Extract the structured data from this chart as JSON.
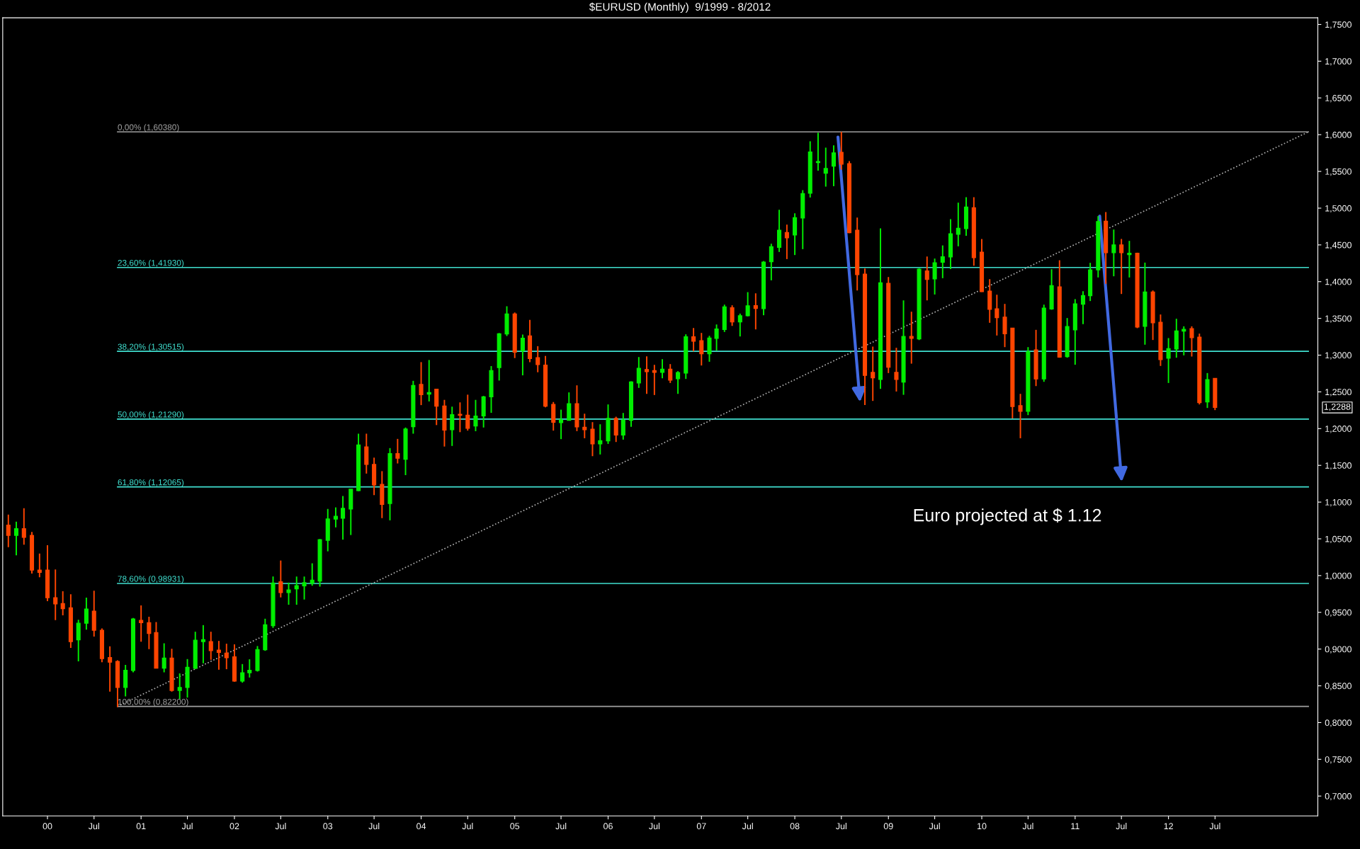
{
  "chart_data": {
    "type": "candlestick",
    "title": "$EURUSD (Monthly)  9/1999 - 8/2012",
    "series": [
      {
        "type": "candlestick",
        "color": "#00ee00",
        "x": [
          "1999-09",
          "2000-05",
          "2000-06",
          "2000-11",
          "2000-12",
          "2001-04",
          "2001-06",
          "2001-07",
          "2001-08",
          "2001-09",
          "2002-02",
          "2002-03",
          "2002-04",
          "2002-05",
          "2002-06",
          "2002-08",
          "2002-09",
          "2002-10",
          "2002-11",
          "2002-12",
          "2003-01",
          "2003-02",
          "2003-03",
          "2003-04",
          "2003-05",
          "2003-09",
          "2003-11",
          "2003-12",
          "2004-02",
          "2004-05",
          "2004-08",
          "2004-09",
          "2004-10",
          "2004-11",
          "2004-12",
          "2005-02",
          "2005-07",
          "2005-08",
          "2005-12",
          "2006-01",
          "2006-03",
          "2006-04",
          "2006-05",
          "2006-08",
          "2006-10",
          "2006-11",
          "2007-02",
          "2007-03",
          "2007-04",
          "2007-06",
          "2007-07",
          "2007-09",
          "2007-10",
          "2007-11",
          "2008-01",
          "2008-02",
          "2008-03",
          "2008-04",
          "2008-05",
          "2008-06",
          "2008-12",
          "2009-03",
          "2009-05",
          "2009-07",
          "2009-08",
          "2009-09",
          "2009-10",
          "2009-11",
          "2010-07",
          "2010-09",
          "2010-10",
          "2010-12",
          "2011-01",
          "2011-02",
          "2011-03",
          "2011-04",
          "2011-06",
          "2011-08",
          "2011-10",
          "2012-01",
          "2012-02",
          "2012-03",
          "2012-06"
        ],
        "ohlc": [
          [
            1.0547,
            1.0733,
            1.0277,
            1.0637
          ],
          [
            0.9127,
            0.94,
            0.8832,
            0.9352
          ],
          [
            0.9352,
            0.9699,
            0.9265,
            0.9545
          ],
          [
            0.8478,
            0.8784,
            0.8357,
            0.871
          ],
          [
            0.871,
            0.9423,
            0.8684,
            0.941
          ],
          [
            0.8742,
            0.9079,
            0.8684,
            0.8877
          ],
          [
            0.8437,
            0.8668,
            0.8318,
            0.8478
          ],
          [
            0.8478,
            0.8864,
            0.834,
            0.8751
          ],
          [
            0.8742,
            0.9236,
            0.8726,
            0.9121
          ],
          [
            0.9101,
            0.9326,
            0.8806,
            0.9127
          ],
          [
            0.8565,
            0.8796,
            0.8543,
            0.8678
          ],
          [
            0.8678,
            0.8861,
            0.8613,
            0.871
          ],
          [
            0.871,
            0.9041,
            0.8694,
            0.8992
          ],
          [
            0.8992,
            0.9413,
            0.8976,
            0.933
          ],
          [
            0.932,
            0.9988,
            0.9288,
            0.9898
          ],
          [
            0.977,
            0.9904,
            0.9603,
            0.9804
          ],
          [
            0.982,
            0.9987,
            0.9603,
            0.9862
          ],
          [
            0.9862,
            0.9987,
            0.9674,
            0.9904
          ],
          [
            0.9896,
            1.0167,
            0.9862,
            0.9937
          ],
          [
            0.9925,
            1.0497,
            0.985,
            1.0489
          ],
          [
            1.0481,
            1.0907,
            1.033,
            1.0769
          ],
          [
            1.0769,
            1.0928,
            1.0656,
            1.0807
          ],
          [
            1.0782,
            1.1083,
            1.0489,
            1.0915
          ],
          [
            1.0907,
            1.1175,
            1.0552,
            1.1175
          ],
          [
            1.1158,
            1.1931,
            1.115,
            1.1776
          ],
          [
            1.0982,
            1.1735,
            1.0752,
            1.1659
          ],
          [
            1.1584,
            1.2015,
            1.1367,
            1.1994
          ],
          [
            1.2027,
            1.265,
            1.1931,
            1.2587
          ],
          [
            1.247,
            1.2934,
            1.237,
            1.2491
          ],
          [
            1.1985,
            1.2299,
            1.1764,
            1.219
          ],
          [
            1.2036,
            1.2391,
            1.1965,
            1.2169
          ],
          [
            1.2174,
            1.2445,
            1.2015,
            1.2433
          ],
          [
            1.2433,
            1.2851,
            1.2215,
            1.2788
          ],
          [
            1.283,
            1.33,
            1.2654,
            1.329
          ],
          [
            1.329,
            1.3665,
            1.326,
            1.356
          ],
          [
            1.306,
            1.328,
            1.2725,
            1.323
          ],
          [
            1.2081,
            1.2258,
            1.1857,
            1.212
          ],
          [
            1.2114,
            1.2493,
            1.2114,
            1.2338
          ],
          [
            1.1792,
            1.2059,
            1.1648,
            1.1834
          ],
          [
            1.1834,
            1.2329,
            1.1792,
            1.2139
          ],
          [
            1.1914,
            1.2213,
            1.185,
            1.2114
          ],
          [
            1.2114,
            1.2643,
            1.2024,
            1.2634
          ],
          [
            1.2621,
            1.2974,
            1.2554,
            1.282
          ],
          [
            1.2766,
            1.2945,
            1.2685,
            1.2807
          ],
          [
            1.2679,
            1.2782,
            1.2473,
            1.2762
          ],
          [
            1.2756,
            1.3283,
            1.2676,
            1.325
          ],
          [
            1.3019,
            1.3263,
            1.291,
            1.3231
          ],
          [
            1.3228,
            1.3417,
            1.3061,
            1.3356
          ],
          [
            1.335,
            1.3687,
            1.3315,
            1.3655
          ],
          [
            1.3453,
            1.3565,
            1.3254,
            1.3536
          ],
          [
            1.3536,
            1.3857,
            1.3527,
            1.3671
          ],
          [
            1.3633,
            1.428,
            1.3543,
            1.4265
          ],
          [
            1.4272,
            1.4516,
            1.4018,
            1.4474
          ],
          [
            1.4468,
            1.4978,
            1.4404,
            1.4699
          ],
          [
            1.4635,
            1.493,
            1.4362,
            1.4869
          ],
          [
            1.4866,
            1.5245,
            1.4442,
            1.5197
          ],
          [
            1.5203,
            1.591,
            1.5145,
            1.5765
          ],
          [
            1.5621,
            1.6025,
            1.5511,
            1.5634
          ],
          [
            1.5476,
            1.5823,
            1.5293,
            1.554
          ],
          [
            1.5572,
            1.5855,
            1.5299,
            1.5752
          ],
          [
            1.2669,
            1.4725,
            1.2541,
            1.3983
          ],
          [
            1.2634,
            1.3745,
            1.246,
            1.3254
          ],
          [
            1.3222,
            1.4182,
            1.3205,
            1.4169
          ],
          [
            1.4037,
            1.4314,
            1.3825,
            1.4256
          ],
          [
            1.4265,
            1.4493,
            1.4047,
            1.4339
          ],
          [
            1.4336,
            1.485,
            1.4172,
            1.4651
          ],
          [
            1.4644,
            1.5075,
            1.4481,
            1.4725
          ],
          [
            1.4721,
            1.5149,
            1.4625,
            1.5014
          ],
          [
            1.2236,
            1.3109,
            1.2184,
            1.3045
          ],
          [
            1.2676,
            1.3687,
            1.2637,
            1.3639
          ],
          [
            1.3629,
            1.4169,
            1.3617,
            1.3944
          ],
          [
            1.2981,
            1.3505,
            1.2965,
            1.3389
          ],
          [
            1.3344,
            1.3762,
            1.2869,
            1.3697
          ],
          [
            1.3694,
            1.3871,
            1.3421,
            1.381
          ],
          [
            1.381,
            1.4256,
            1.3736,
            1.416
          ],
          [
            1.416,
            1.4892,
            1.4057,
            1.4818
          ],
          [
            1.4394,
            1.4709,
            1.4073,
            1.45
          ],
          [
            1.4369,
            1.4555,
            1.4057,
            1.4385
          ],
          [
            1.3392,
            1.4259,
            1.3142,
            1.3858
          ],
          [
            1.2959,
            1.3232,
            1.2621,
            1.3087
          ],
          [
            1.3084,
            1.3495,
            1.2965,
            1.3328
          ],
          [
            1.3328,
            1.3392,
            1.2997,
            1.335
          ],
          [
            1.2365,
            1.2756,
            1.2281,
            1.2666
          ]
        ]
      },
      {
        "type": "candlestick",
        "color": "#ff4500",
        "x": [
          "1999-08",
          "1999-10",
          "1999-11",
          "1999-12",
          "2000-01",
          "2000-02",
          "2000-03",
          "2000-04",
          "2000-07",
          "2000-08",
          "2000-09",
          "2000-10",
          "2001-01",
          "2001-02",
          "2001-03",
          "2001-05",
          "2001-10",
          "2001-11",
          "2001-12",
          "2002-01",
          "2002-07",
          "2003-06",
          "2003-07",
          "2003-08",
          "2003-10",
          "2004-01",
          "2004-03",
          "2004-04",
          "2004-06",
          "2004-07",
          "2005-01",
          "2005-03",
          "2005-04",
          "2005-05",
          "2005-06",
          "2005-09",
          "2005-10",
          "2005-11",
          "2006-02",
          "2006-06",
          "2006-07",
          "2006-09",
          "2006-12",
          "2007-01",
          "2007-05",
          "2007-08",
          "2007-12",
          "2008-07",
          "2008-08",
          "2008-09",
          "2008-10",
          "2008-11",
          "2009-01",
          "2009-02",
          "2009-04",
          "2009-06",
          "2009-12",
          "2010-01",
          "2010-02",
          "2010-03",
          "2010-04",
          "2010-05",
          "2010-06",
          "2010-08",
          "2010-11",
          "2011-05",
          "2011-07",
          "2011-09",
          "2011-11",
          "2011-12",
          "2012-04",
          "2012-05",
          "2012-07"
        ],
        "ohlc": [
          [
            1.0685,
            1.0829,
            1.0386,
            1.0547
          ],
          [
            1.0637,
            1.0916,
            1.0421,
            1.0521
          ],
          [
            1.0547,
            1.0595,
            1.0027,
            1.0075
          ],
          [
            1.0075,
            1.0299,
            0.9978,
            1.0043
          ],
          [
            1.0075,
            1.0412,
            0.9651,
            0.9699
          ],
          [
            0.9699,
            1.0084,
            0.9394,
            0.9615
          ],
          [
            0.9619,
            0.9786,
            0.9458,
            0.9551
          ],
          [
            0.9561,
            0.9747,
            0.9015,
            0.9101
          ],
          [
            0.9516,
            0.9795,
            0.9169,
            0.9256
          ],
          [
            0.9256,
            0.9281,
            0.8822,
            0.887
          ],
          [
            0.8883,
            0.9037,
            0.8421,
            0.8822
          ],
          [
            0.8832,
            0.8848,
            0.8212,
            0.8478
          ],
          [
            0.9391,
            0.9593,
            0.9101,
            0.9359
          ],
          [
            0.9359,
            0.9439,
            0.9,
            0.9214
          ],
          [
            0.9224,
            0.9368,
            0.874,
            0.8742
          ],
          [
            0.8877,
            0.9005,
            0.8421,
            0.8437
          ],
          [
            0.9101,
            0.9236,
            0.8854,
            0.8979
          ],
          [
            0.8986,
            0.9111,
            0.8719,
            0.8954
          ],
          [
            0.8944,
            0.9073,
            0.8726,
            0.8883
          ],
          [
            0.8893,
            0.9063,
            0.8555,
            0.8565
          ],
          [
            0.9916,
            1.0205,
            0.9703,
            0.977
          ],
          [
            1.1751,
            1.1931,
            1.1388,
            1.1513
          ],
          [
            1.1513,
            1.1605,
            1.1095,
            1.1233
          ],
          [
            1.1241,
            1.1421,
            1.0782,
            1.097
          ],
          [
            1.1659,
            1.186,
            1.1526,
            1.1597
          ],
          [
            1.26,
            1.2905,
            1.232,
            1.2462
          ],
          [
            1.2537,
            1.254,
            1.2048,
            1.2307
          ],
          [
            1.2307,
            1.2391,
            1.1756,
            1.1981
          ],
          [
            1.2194,
            1.2357,
            1.1952,
            1.2182
          ],
          [
            1.2182,
            1.2462,
            1.1973,
            1.2006
          ],
          [
            1.356,
            1.358,
            1.296,
            1.304
          ],
          [
            1.326,
            1.348,
            1.2905,
            1.2955
          ],
          [
            1.2964,
            1.3122,
            1.2767,
            1.2872
          ],
          [
            1.2863,
            1.2989,
            1.229,
            1.2307
          ],
          [
            1.2328,
            1.2362,
            1.1973,
            1.2086
          ],
          [
            1.2338,
            1.2589,
            1.1966,
            1.2024
          ],
          [
            1.2017,
            1.2203,
            1.1869,
            1.1985
          ],
          [
            1.1991,
            1.2088,
            1.1625,
            1.1792
          ],
          [
            1.2139,
            1.2162,
            1.1818,
            1.1914
          ],
          [
            1.2804,
            1.2984,
            1.2473,
            1.2775
          ],
          [
            1.2788,
            1.2868,
            1.2457,
            1.2766
          ],
          [
            1.2807,
            1.2878,
            1.2621,
            1.266
          ],
          [
            1.325,
            1.3369,
            1.3051,
            1.3189
          ],
          [
            1.3196,
            1.3302,
            1.2859,
            1.3019
          ],
          [
            1.3645,
            1.3678,
            1.3398,
            1.3453
          ],
          [
            1.3674,
            1.3841,
            1.335,
            1.3636
          ],
          [
            1.4667,
            1.4776,
            1.4307,
            1.4596
          ],
          [
            1.5759,
            1.6038,
            1.5524,
            1.5598
          ],
          [
            1.5605,
            1.564,
            1.466,
            1.4667
          ],
          [
            1.4699,
            1.4872,
            1.388,
            1.4095
          ],
          [
            1.4102,
            1.4179,
            1.2322,
            1.2724
          ],
          [
            1.2765,
            1.3116,
            1.2377,
            1.2692
          ],
          [
            1.3976,
            1.4063,
            1.2756,
            1.2836
          ],
          [
            1.2765,
            1.31,
            1.2505,
            1.2669
          ],
          [
            1.3254,
            1.3591,
            1.2884,
            1.3228
          ],
          [
            1.4146,
            1.4342,
            1.3745,
            1.4031
          ],
          [
            1.5004,
            1.5149,
            1.4217,
            1.4326
          ],
          [
            1.44,
            1.458,
            1.386,
            1.3864
          ],
          [
            1.387,
            1.4034,
            1.344,
            1.3623
          ],
          [
            1.3629,
            1.3822,
            1.3267,
            1.3511
          ],
          [
            1.3517,
            1.3697,
            1.3109,
            1.3292
          ],
          [
            1.3366,
            1.3366,
            1.2139,
            1.23
          ],
          [
            1.2313,
            1.2473,
            1.1869,
            1.2236
          ],
          [
            1.3071,
            1.3344,
            1.2579,
            1.2676
          ],
          [
            1.3928,
            1.4291,
            1.2965,
            1.2974
          ],
          [
            1.4821,
            1.4947,
            1.397,
            1.4394
          ],
          [
            1.45,
            1.4581,
            1.3832,
            1.4394
          ],
          [
            1.4385,
            1.4394,
            1.3367,
            1.3383
          ],
          [
            1.3858,
            1.388,
            1.3206,
            1.344
          ],
          [
            1.3447,
            1.3553,
            1.2853,
            1.2939
          ],
          [
            1.336,
            1.3392,
            1.2981,
            1.3238
          ],
          [
            1.3244,
            1.3293,
            1.2329,
            1.2355
          ],
          [
            1.2682,
            1.2682,
            1.2252,
            1.2288
          ]
        ]
      },
      {
        "type": "line",
        "name": "0,00% (1,60380)",
        "color": "#a0a0a0",
        "x": [
          "2000-10",
          "2013-07"
        ],
        "values": [
          1.6038,
          1.6038
        ]
      },
      {
        "type": "line",
        "name": "23,60% (1,41930)",
        "color": "#40e0d0",
        "x": [
          "2000-10",
          "2013-07"
        ],
        "values": [
          1.4193,
          1.4193
        ]
      },
      {
        "type": "line",
        "name": "38,20% (1,30515)",
        "color": "#40e0d0",
        "x": [
          "2000-10",
          "2013-07"
        ],
        "values": [
          1.30515,
          1.30515
        ]
      },
      {
        "type": "line",
        "name": "50,00% (1,21290)",
        "color": "#40e0d0",
        "x": [
          "2000-10",
          "2013-07"
        ],
        "values": [
          1.2129,
          1.2129
        ]
      },
      {
        "type": "line",
        "name": "61,80% (1,12065)",
        "color": "#40e0d0",
        "x": [
          "2000-10",
          "2013-07"
        ],
        "values": [
          1.12065,
          1.12065
        ]
      },
      {
        "type": "line",
        "name": "78,60% (0,98931)",
        "color": "#40e0d0",
        "x": [
          "2000-10",
          "2013-07"
        ],
        "values": [
          0.98931,
          0.98931
        ]
      },
      {
        "type": "line",
        "name": "100,00% (0,82200)",
        "color": "#a0a0a0",
        "x": [
          "2000-10",
          "2013-07"
        ],
        "values": [
          0.822,
          0.822
        ]
      },
      {
        "type": "line",
        "color": "#b0b0b0",
        "line_style": "dotted",
        "x": [
          "2000-10",
          "2013-07"
        ],
        "values": [
          0.822,
          1.6038
        ]
      }
    ],
    "annotations": [
      "Euro projected at $ 1.12",
      "1,2288"
    ],
    "xlim": [
      "1999-07-10",
      "2013-08-07"
    ],
    "xticks": [
      {
        "value": "2000-01",
        "label": "00"
      },
      {
        "value": "2000-07",
        "label": "Jul"
      },
      {
        "value": "2001-01",
        "label": "01"
      },
      {
        "value": "2001-07",
        "label": "Jul"
      },
      {
        "value": "2002-01",
        "label": "02"
      },
      {
        "value": "2002-07",
        "label": "Jul"
      },
      {
        "value": "2003-01",
        "label": "03"
      },
      {
        "value": "2003-07",
        "label": "Jul"
      },
      {
        "value": "2004-01",
        "label": "04"
      },
      {
        "value": "2004-07",
        "label": "Jul"
      },
      {
        "value": "2005-01",
        "label": "05"
      },
      {
        "value": "2005-07",
        "label": "Jul"
      },
      {
        "value": "2006-01",
        "label": "06"
      },
      {
        "value": "2006-07",
        "label": "Jul"
      },
      {
        "value": "2007-01",
        "label": "07"
      },
      {
        "value": "2007-07",
        "label": "Jul"
      },
      {
        "value": "2008-01",
        "label": "08"
      },
      {
        "value": "2008-07",
        "label": "Jul"
      },
      {
        "value": "2009-01",
        "label": "09"
      },
      {
        "value": "2009-07",
        "label": "Jul"
      },
      {
        "value": "2010-01",
        "label": "10"
      },
      {
        "value": "2010-07",
        "label": "Jul"
      },
      {
        "value": "2011-01",
        "label": "11"
      },
      {
        "value": "2011-07",
        "label": "Jul"
      },
      {
        "value": "2012-01",
        "label": "12"
      },
      {
        "value": "2012-07",
        "label": "Jul"
      }
    ],
    "ylim": [
      0.673,
      1.759
    ],
    "yticks": [
      {
        "value": 0.7,
        "label": "0,7000"
      },
      {
        "value": 0.75,
        "label": "0,7500"
      },
      {
        "value": 0.8,
        "label": "0,8000"
      },
      {
        "value": 0.85,
        "label": "0,8500"
      },
      {
        "value": 0.9,
        "label": "0,9000"
      },
      {
        "value": 0.95,
        "label": "0,9500"
      },
      {
        "value": 1.0,
        "label": "1,0000"
      },
      {
        "value": 1.05,
        "label": "1,0500"
      },
      {
        "value": 1.1,
        "label": "1,1000"
      },
      {
        "value": 1.15,
        "label": "1,1500"
      },
      {
        "value": 1.2,
        "label": "1,2000"
      },
      {
        "value": 1.25,
        "label": "1,2500"
      },
      {
        "value": 1.3,
        "label": "1,3000"
      },
      {
        "value": 1.35,
        "label": "1,3500"
      },
      {
        "value": 1.4,
        "label": "1,4000"
      },
      {
        "value": 1.45,
        "label": "1,4500"
      },
      {
        "value": 1.5,
        "label": "1,5000"
      },
      {
        "value": 1.55,
        "label": "1,5500"
      },
      {
        "value": 1.6,
        "label": "1,6000"
      },
      {
        "value": 1.65,
        "label": "1,6500"
      },
      {
        "value": 1.7,
        "label": "1,7000"
      },
      {
        "value": 1.75,
        "label": "1,7500"
      }
    ],
    "grid": false,
    "legend": false
  }
}
